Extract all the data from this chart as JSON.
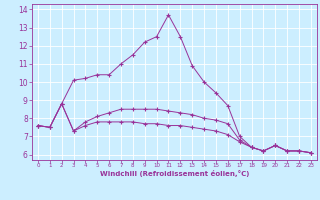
{
  "xlabel": "Windchill (Refroidissement éolien,°C)",
  "bg_color": "#cceeff",
  "line_color": "#993399",
  "grid_color": "#ffffff",
  "xlim": [
    -0.5,
    23.5
  ],
  "ylim": [
    5.7,
    14.3
  ],
  "xticks": [
    0,
    1,
    2,
    3,
    4,
    5,
    6,
    7,
    8,
    9,
    10,
    11,
    12,
    13,
    14,
    15,
    16,
    17,
    18,
    19,
    20,
    21,
    22,
    23
  ],
  "yticks": [
    6,
    7,
    8,
    9,
    10,
    11,
    12,
    13,
    14
  ],
  "line1_x": [
    0,
    1,
    2,
    3,
    4,
    5,
    6,
    7,
    8,
    9,
    10,
    11,
    12,
    13,
    14,
    15,
    16,
    17,
    18,
    19,
    20,
    21,
    22,
    23
  ],
  "line1_y": [
    7.6,
    7.5,
    8.8,
    10.1,
    10.2,
    10.4,
    10.4,
    11.0,
    11.5,
    12.2,
    12.5,
    13.7,
    12.5,
    10.9,
    10.0,
    9.4,
    8.7,
    7.0,
    6.4,
    6.2,
    6.5,
    6.2,
    6.2,
    6.1
  ],
  "line2_x": [
    0,
    1,
    2,
    3,
    4,
    5,
    6,
    7,
    8,
    9,
    10,
    11,
    12,
    13,
    14,
    15,
    16,
    17,
    18,
    19,
    20,
    21,
    22,
    23
  ],
  "line2_y": [
    7.6,
    7.5,
    8.8,
    7.3,
    7.8,
    8.1,
    8.3,
    8.5,
    8.5,
    8.5,
    8.5,
    8.4,
    8.3,
    8.2,
    8.0,
    7.9,
    7.7,
    6.8,
    6.4,
    6.2,
    6.5,
    6.2,
    6.2,
    6.1
  ],
  "line3_x": [
    0,
    1,
    2,
    3,
    4,
    5,
    6,
    7,
    8,
    9,
    10,
    11,
    12,
    13,
    14,
    15,
    16,
    17,
    18,
    19,
    20,
    21,
    22,
    23
  ],
  "line3_y": [
    7.6,
    7.5,
    8.8,
    7.3,
    7.6,
    7.8,
    7.8,
    7.8,
    7.8,
    7.7,
    7.7,
    7.6,
    7.6,
    7.5,
    7.4,
    7.3,
    7.1,
    6.7,
    6.4,
    6.2,
    6.5,
    6.2,
    6.2,
    6.1
  ]
}
